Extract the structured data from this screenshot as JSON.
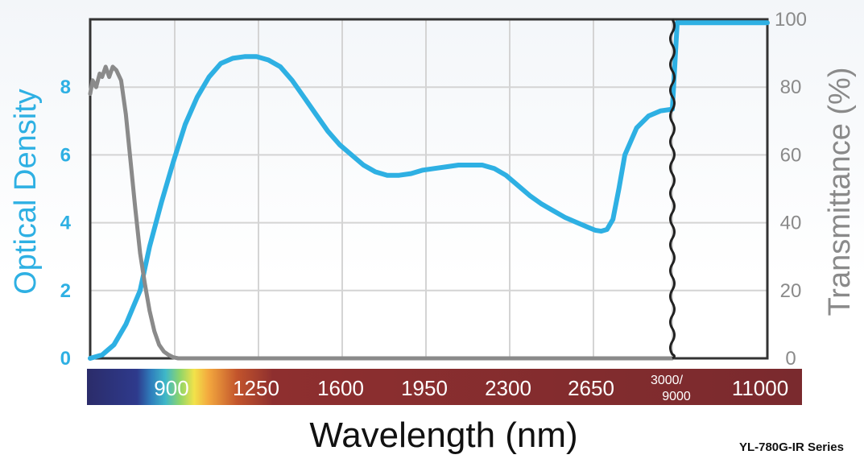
{
  "chart_data": {
    "type": "line",
    "xlabel": "Wavelength (nm)",
    "ylabel_left": "Optical Density",
    "ylabel_right": "Transmittance (%)",
    "series_label": "YL-780G-IR Series",
    "x_ticks": [
      "900",
      "1250",
      "1600",
      "1950",
      "2300",
      "2650",
      "3000/\n9000",
      "11000"
    ],
    "x_tick_values": [
      900,
      1250,
      1600,
      1950,
      2300,
      2650,
      3000,
      11000
    ],
    "x_break": "3000/9000",
    "xlim": [
      550,
      11000
    ],
    "ylim_left": [
      0,
      10
    ],
    "ylim_right": [
      0,
      100
    ],
    "y_ticks_left": [
      "0",
      "2",
      "4",
      "6",
      "8"
    ],
    "y_ticks_right": [
      "0",
      "20",
      "40",
      "60",
      "80",
      "100"
    ],
    "grid": true,
    "colors": {
      "od": "#2eb0e3",
      "transmittance": "#8a8a8a",
      "grid": "#d4d4d4",
      "frame": "#333333"
    },
    "series": [
      {
        "axis": "left",
        "x": [
          550,
          600,
          650,
          700,
          760,
          800,
          850,
          900,
          950,
          1000,
          1050,
          1100,
          1150,
          1200,
          1250,
          1300,
          1350,
          1400,
          1450,
          1500,
          1550,
          1600,
          1650,
          1700,
          1750,
          1800,
          1850,
          1900,
          1950,
          2000,
          2050,
          2100,
          2150,
          2200,
          2250,
          2300,
          2350,
          2400,
          2450,
          2500,
          2550,
          2600,
          2650,
          2675,
          2700,
          2725,
          2750,
          2775,
          2800,
          2850,
          2900,
          2950,
          3000,
          9000,
          11000
        ],
        "values": [
          0.0,
          0.1,
          0.4,
          1.0,
          2.0,
          3.3,
          4.6,
          5.8,
          6.9,
          7.7,
          8.3,
          8.7,
          8.85,
          8.9,
          8.9,
          8.8,
          8.6,
          8.2,
          7.7,
          7.2,
          6.7,
          6.3,
          6.0,
          5.7,
          5.5,
          5.4,
          5.4,
          5.45,
          5.55,
          5.6,
          5.65,
          5.7,
          5.7,
          5.7,
          5.6,
          5.4,
          5.1,
          4.8,
          4.55,
          4.35,
          4.15,
          4.0,
          3.85,
          3.78,
          3.75,
          3.8,
          4.1,
          5.0,
          6.0,
          6.8,
          7.15,
          7.3,
          7.35,
          9.9,
          9.9
        ]
      },
      {
        "axis": "right",
        "x": [
          550,
          560,
          575,
          590,
          600,
          615,
          630,
          645,
          660,
          680,
          700,
          720,
          740,
          760,
          780,
          800,
          820,
          840,
          860,
          880,
          900,
          920,
          950,
          1000,
          3000
        ],
        "values": [
          78,
          82,
          80,
          84,
          83,
          86,
          83,
          86,
          85,
          82,
          72,
          58,
          44,
          31,
          22,
          14,
          8,
          4,
          2,
          1,
          0.3,
          0,
          0,
          0,
          0
        ]
      }
    ]
  }
}
